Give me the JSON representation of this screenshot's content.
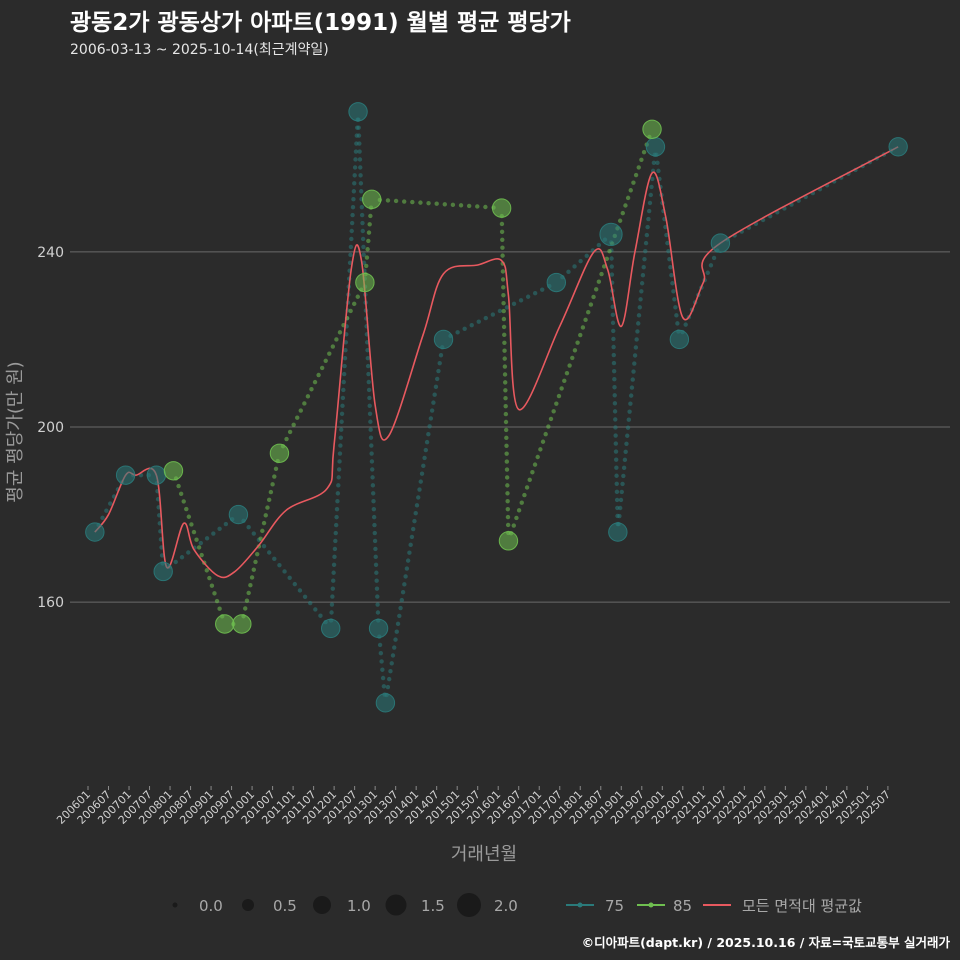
{
  "chart_data": {
    "type": "line",
    "title": "광동2가 광동상가 아파트(1991) 월별 평균 평당가",
    "subtitle": "2006-03-13 ~ 2025-10-14(최근계약일)",
    "xlabel": "거래년월",
    "ylabel": "평균 평당가(만 원)",
    "ylim": [
      118,
      282
    ],
    "yticks": [
      160,
      200,
      240
    ],
    "grid": true,
    "caption": "©디아파트(dapt.kr) / 2025.10.16 / 자료=국토교통부 실거래가",
    "x_start": "2006-01",
    "x_end": "2025-12",
    "x_tick_labels": [
      "200601",
      "200607",
      "200701",
      "200707",
      "200801",
      "200807",
      "200901",
      "200907",
      "201001",
      "201007",
      "201101",
      "201107",
      "201201",
      "201207",
      "201301",
      "201307",
      "201401",
      "201407",
      "201501",
      "201507",
      "201601",
      "201607",
      "201701",
      "201707",
      "201801",
      "201807",
      "201901",
      "201907",
      "202001",
      "202007",
      "202101",
      "202107",
      "202201",
      "202207",
      "202301",
      "202307",
      "202401",
      "202407",
      "202501",
      "202507"
    ],
    "colors": {
      "s75": "#2a7a7a",
      "s85": "#6fbf50",
      "avg": "#e8595f"
    },
    "size_legend": {
      "title": "",
      "labels": [
        "0.0",
        "0.5",
        "1.0",
        "1.5",
        "2.0"
      ]
    },
    "line_legend": {
      "labels": [
        "75",
        "85",
        "모든 면적대 평균값"
      ]
    },
    "series": [
      {
        "name": "75",
        "color": "#2a7a7a",
        "points": [
          [
            "2006-03",
            176,
            1.0
          ],
          [
            "2006-12",
            189,
            1.0
          ],
          [
            "2007-09",
            189,
            1.0
          ],
          [
            "2007-11",
            167,
            1.0
          ],
          [
            "2009-09",
            180,
            1.0
          ],
          [
            "2011-12",
            154,
            1.0
          ],
          [
            "2012-08",
            272,
            1.0
          ],
          [
            "2013-02",
            154,
            1.0
          ],
          [
            "2013-04",
            137,
            1.0
          ],
          [
            "2014-09",
            220,
            1.0
          ],
          [
            "2017-06",
            233,
            1.0
          ],
          [
            "2018-10",
            244,
            1.6
          ],
          [
            "2018-12",
            176,
            1.0
          ],
          [
            "2019-11",
            264,
            1.0
          ],
          [
            "2020-06",
            220,
            1.0
          ],
          [
            "2021-06",
            242,
            1.0
          ],
          [
            "2025-10",
            264,
            1.0
          ]
        ]
      },
      {
        "name": "85",
        "color": "#6fbf50",
        "points": [
          [
            "2008-02",
            190,
            1.0
          ],
          [
            "2009-05",
            155,
            1.0
          ],
          [
            "2009-10",
            155,
            1.0
          ],
          [
            "2010-09",
            194,
            1.0
          ],
          [
            "2012-10",
            233,
            1.0
          ],
          [
            "2012-12",
            252,
            1.0
          ],
          [
            "2016-02",
            250,
            1.0
          ],
          [
            "2016-04",
            174,
            1.0
          ],
          [
            "2019-10",
            268,
            1.0
          ]
        ]
      },
      {
        "name": "모든 면적대 평균값",
        "color": "#e8595f",
        "points": [
          [
            "2006-03",
            176
          ],
          [
            "2006-07",
            180
          ],
          [
            "2006-12",
            189
          ],
          [
            "2007-03",
            189
          ],
          [
            "2007-09",
            189
          ],
          [
            "2007-12",
            168
          ],
          [
            "2008-05",
            178
          ],
          [
            "2008-08",
            172
          ],
          [
            "2009-03",
            166
          ],
          [
            "2009-08",
            167
          ],
          [
            "2010-03",
            173
          ],
          [
            "2010-11",
            181
          ],
          [
            "2011-11",
            186
          ],
          [
            "2012-01",
            196
          ],
          [
            "2012-06",
            236
          ],
          [
            "2012-09",
            238
          ],
          [
            "2013-01",
            205
          ],
          [
            "2013-05",
            198
          ],
          [
            "2014-03",
            221
          ],
          [
            "2014-09",
            235
          ],
          [
            "2015-07",
            237
          ],
          [
            "2016-02",
            238
          ],
          [
            "2016-04",
            230
          ],
          [
            "2016-07",
            204
          ],
          [
            "2017-07",
            223
          ],
          [
            "2018-05",
            240
          ],
          [
            "2018-09",
            236
          ],
          [
            "2019-01",
            223
          ],
          [
            "2019-05",
            240
          ],
          [
            "2019-10",
            258
          ],
          [
            "2020-02",
            248
          ],
          [
            "2020-07",
            225
          ],
          [
            "2021-01",
            233
          ],
          [
            "2021-06",
            242
          ],
          [
            "2025-10",
            264
          ]
        ]
      }
    ]
  }
}
